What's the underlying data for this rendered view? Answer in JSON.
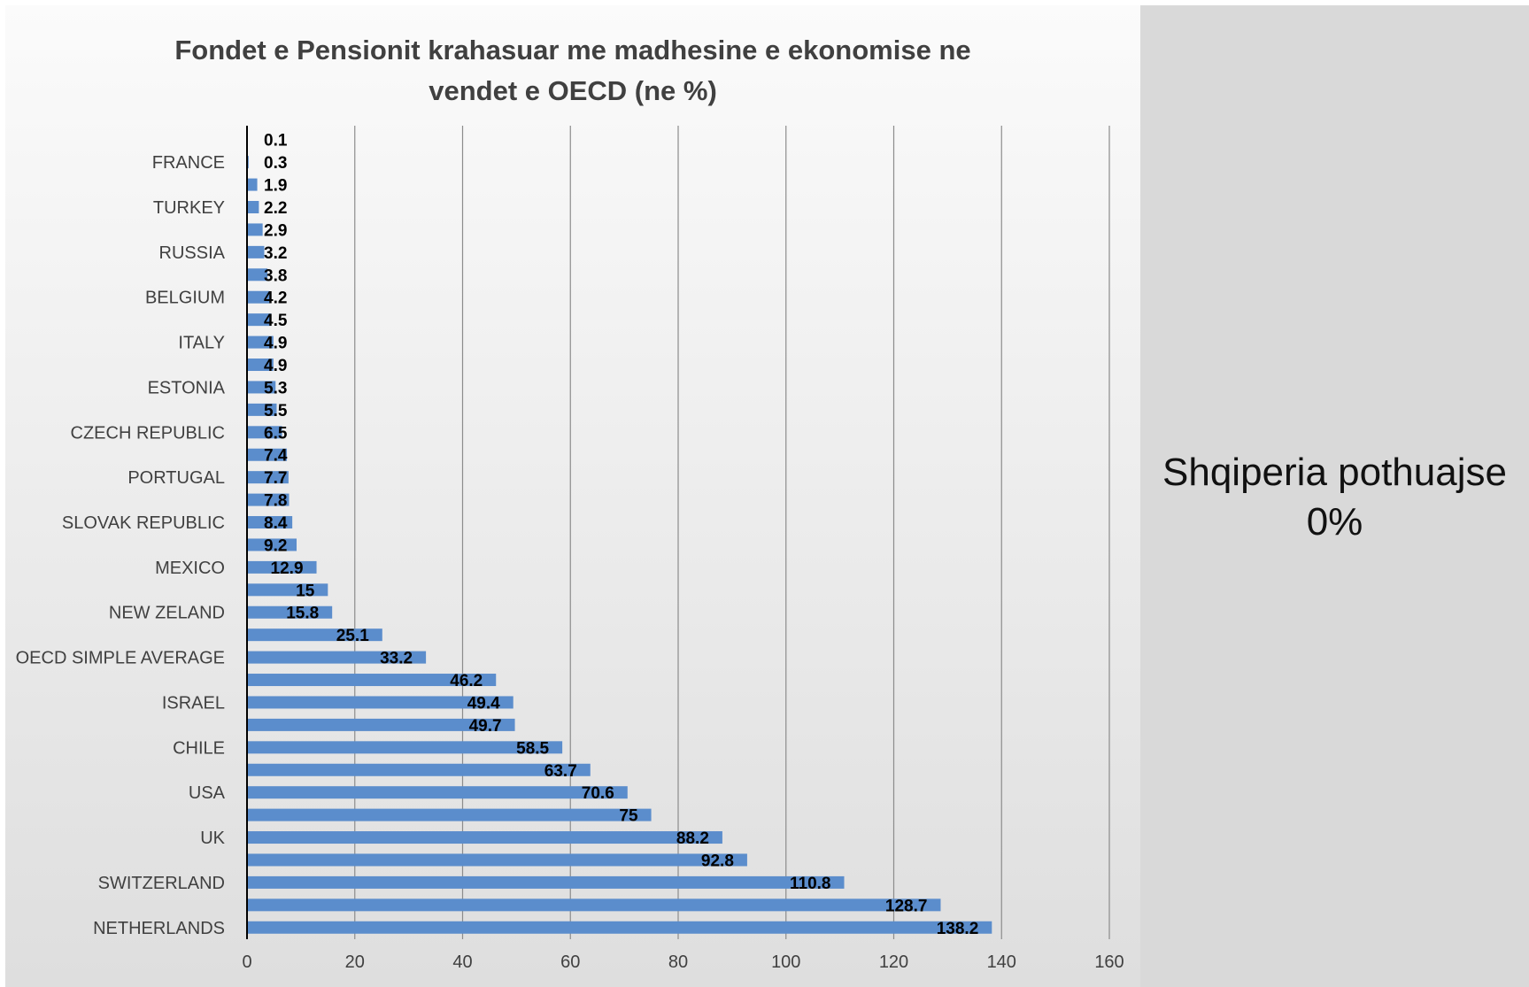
{
  "chart_data": {
    "type": "bar",
    "orientation": "horizontal",
    "title_lines": [
      "Fondet e Pensionit krahasuar me madhesine e ekonomise ne",
      "vendet e OECD (ne %)"
    ],
    "xlim": [
      0,
      160
    ],
    "x_ticks": [
      "0",
      "20",
      "40",
      "60",
      "80",
      "100",
      "120",
      "140",
      "160"
    ],
    "grid": "vertical",
    "bar_color": "#5b8dcc",
    "categories": [
      "",
      "FRANCE",
      "",
      "TURKEY",
      "",
      "RUSSIA",
      "",
      "BELGIUM",
      "",
      "ITALY",
      "",
      "ESTONIA",
      "",
      "CZECH REPUBLIC",
      "",
      "PORTUGAL",
      "",
      "SLOVAK REPUBLIC",
      "",
      "MEXICO",
      "",
      "NEW ZELAND",
      "",
      "OECD SIMPLE AVERAGE",
      "",
      "ISRAEL",
      "",
      "CHILE",
      "",
      "USA",
      "",
      "UK",
      "",
      "SWITZERLAND",
      "",
      "NETHERLANDS"
    ],
    "values": [
      0.1,
      0.3,
      1.9,
      2.2,
      2.9,
      3.2,
      3.8,
      4.2,
      4.5,
      4.9,
      4.9,
      5.3,
      5.5,
      6.5,
      7.4,
      7.7,
      7.8,
      8.4,
      9.2,
      12.9,
      15,
      15.8,
      25.1,
      33.2,
      46.2,
      49.4,
      49.7,
      58.5,
      63.7,
      70.6,
      75,
      88.2,
      92.8,
      110.8,
      128.7,
      138.2
    ],
    "data_labels": [
      "0.1",
      "0.3",
      "1.9",
      "2.2",
      "2.9",
      "3.2",
      "3.8",
      "4.2",
      "4.5",
      "4.9",
      "4.9",
      "5.3",
      "5.5",
      "6.5",
      "7.4",
      "7.7",
      "7.8",
      "8.4",
      "9.2",
      "12.9",
      "15",
      "15.8",
      "25.1",
      "33.2",
      "46.2",
      "49.4",
      "49.7",
      "58.5",
      "63.7",
      "70.6",
      "75",
      "88.2",
      "92.8",
      "110.8",
      "128.7",
      "138.2"
    ]
  },
  "side_note": {
    "line1": "Shqiperia pothuajse",
    "line2": "0%"
  }
}
